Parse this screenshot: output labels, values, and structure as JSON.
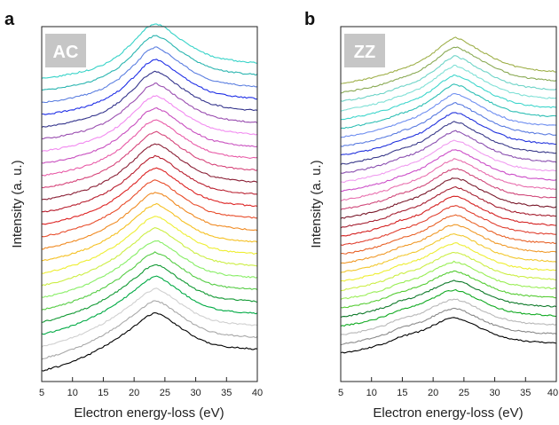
{
  "chart_data": [
    {
      "type": "line",
      "panel_label": "a",
      "tag": "AC",
      "xlabel": "Electron energy-loss (eV)",
      "ylabel": "Intensity (a. u.)",
      "xlim": [
        5,
        40
      ],
      "xticks": [
        5,
        10,
        15,
        20,
        25,
        30,
        35,
        40
      ],
      "yticks_shown": false,
      "stacked_offset": true,
      "grid": false,
      "x": [
        5,
        7.5,
        10,
        12.5,
        15,
        17.5,
        20,
        22,
        23.5,
        25,
        27.5,
        30,
        32.5,
        35,
        37.5,
        40
      ],
      "series_count": 25,
      "bottom_spectrum_rel_intensity": [
        0.0,
        0.07,
        0.16,
        0.27,
        0.41,
        0.57,
        0.76,
        0.92,
        1.0,
        0.93,
        0.74,
        0.57,
        0.46,
        0.41,
        0.39,
        0.37
      ],
      "top_spectrum_rel_intensity": [
        0.0,
        0.03,
        0.08,
        0.14,
        0.24,
        0.41,
        0.67,
        0.92,
        1.0,
        0.92,
        0.71,
        0.53,
        0.4,
        0.34,
        0.3,
        0.28
      ],
      "colors": [
        "#000000",
        "#a8a8a8",
        "#d0d0d0",
        "#00aa44",
        "#119933",
        "#55cc44",
        "#88ee66",
        "#ccee44",
        "#eeee33",
        "#f5c022",
        "#f08a22",
        "#e84c2a",
        "#dd2222",
        "#b81e2e",
        "#8a1f35",
        "#d6457a",
        "#e85ba7",
        "#c84fbf",
        "#f28bf0",
        "#9a4fb0",
        "#34348c",
        "#1e2ee6",
        "#5c7fe0",
        "#2bb5b0",
        "#37d3c8"
      ]
    },
    {
      "type": "line",
      "panel_label": "b",
      "tag": "ZZ",
      "xlabel": "Electron energy-loss (eV)",
      "ylabel": "Intensity (a. u.)",
      "xlim": [
        5,
        40
      ],
      "xticks": [
        5,
        10,
        15,
        20,
        25,
        30,
        35,
        40
      ],
      "xtick_labels": [
        "5",
        "10",
        "15",
        "20",
        "25",
        "30",
        "35",
        "40"
      ],
      "yticks_shown": false,
      "stacked_offset": true,
      "grid": false,
      "x": [
        5,
        7.5,
        10,
        12.5,
        14.5,
        16,
        18,
        20,
        22,
        23.5,
        25,
        27.5,
        30,
        32.5,
        35,
        37.5,
        40
      ],
      "series_count": 31,
      "bottom_spectrum_rel_intensity": [
        0.0,
        0.07,
        0.17,
        0.3,
        0.46,
        0.52,
        0.62,
        0.78,
        0.94,
        1.0,
        0.93,
        0.72,
        0.52,
        0.4,
        0.34,
        0.31,
        0.29
      ],
      "top_spectrum_rel_intensity": [
        0.0,
        0.05,
        0.12,
        0.2,
        0.3,
        0.36,
        0.48,
        0.66,
        0.88,
        1.0,
        0.92,
        0.72,
        0.54,
        0.4,
        0.32,
        0.28,
        0.26
      ],
      "colors": [
        "#000000",
        "#8a8a8a",
        "#b8b8b8",
        "#11aa22",
        "#0f7a2a",
        "#55cc33",
        "#99ee55",
        "#ccee44",
        "#eeee33",
        "#f2c830",
        "#f09a2a",
        "#e86228",
        "#e04030",
        "#d42020",
        "#a51f30",
        "#7a1a2c",
        "#d0487a",
        "#e86fae",
        "#cc4fc8",
        "#f09cf0",
        "#8a4fb0",
        "#3a3a8a",
        "#2233dd",
        "#5a7be0",
        "#6f8ff0",
        "#2fbfb5",
        "#3fd6cc",
        "#7fe0d6",
        "#6fd4c8",
        "#8aaa55",
        "#9fb04a"
      ]
    }
  ]
}
